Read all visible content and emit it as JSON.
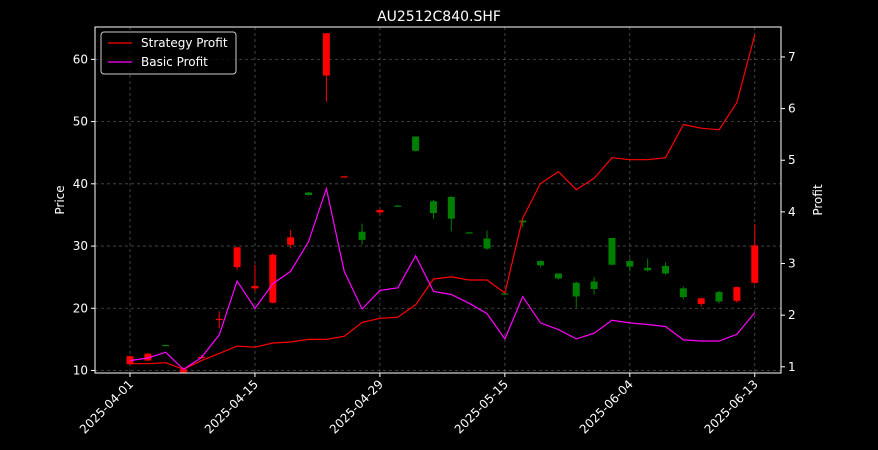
{
  "chart_data": {
    "type": "candlestick-with-lines",
    "title": "AU2512C840.SHF",
    "xlabel": "",
    "ylabel_left": "Price",
    "ylabel_right": "Profit",
    "ylim_left": [
      9.6,
      65.2
    ],
    "ylim_right": [
      0.88,
      7.58
    ],
    "left_ticks": [
      10,
      20,
      30,
      40,
      50,
      60
    ],
    "right_ticks": [
      1,
      2,
      3,
      4,
      5,
      6,
      7
    ],
    "x_ticks": [
      "2025-04-01",
      "2025-04-15",
      "2025-04-29",
      "2025-05-15",
      "2025-06-04",
      "2025-06-13"
    ],
    "x_tick_index": [
      0,
      7,
      14,
      21,
      28,
      35
    ],
    "grid": true,
    "legend_position": "top-left",
    "up_color": "#008000",
    "down_color": "#ff0000",
    "candles": [
      {
        "o": 12.3,
        "h": 12.4,
        "l": 10.9,
        "c": 11.0
      },
      {
        "o": 12.7,
        "h": 12.8,
        "l": 11.5,
        "c": 11.6
      },
      {
        "o": 14.0,
        "h": 14.1,
        "l": 13.9,
        "c": 14.1
      },
      {
        "o": 10.2,
        "h": 10.4,
        "l": 9.6,
        "c": 9.7
      },
      {
        "o": 12.2,
        "h": 12.5,
        "l": 11.9,
        "c": 12.0
      },
      {
        "o": 18.3,
        "h": 19.5,
        "l": 16.8,
        "c": 18.2
      },
      {
        "o": 29.8,
        "h": 29.9,
        "l": 26.2,
        "c": 26.6
      },
      {
        "o": 23.6,
        "h": 27.0,
        "l": 22.7,
        "c": 23.2
      },
      {
        "o": 28.6,
        "h": 28.8,
        "l": 20.8,
        "c": 20.9
      },
      {
        "o": 31.4,
        "h": 32.6,
        "l": 29.6,
        "c": 30.2
      },
      {
        "o": 38.2,
        "h": 38.7,
        "l": 38.1,
        "c": 38.6
      },
      {
        "o": 64.2,
        "h": 64.2,
        "l": 53.2,
        "c": 57.4
      },
      {
        "o": 41.2,
        "h": 41.3,
        "l": 41.0,
        "c": 41.1
      },
      {
        "o": 31.0,
        "h": 33.6,
        "l": 30.2,
        "c": 32.3
      },
      {
        "o": 35.8,
        "h": 36.0,
        "l": 35.1,
        "c": 35.4
      },
      {
        "o": 36.4,
        "h": 36.6,
        "l": 36.3,
        "c": 36.5
      },
      {
        "o": 45.3,
        "h": 47.6,
        "l": 45.2,
        "c": 47.6
      },
      {
        "o": 35.3,
        "h": 37.4,
        "l": 34.4,
        "c": 37.2
      },
      {
        "o": 34.4,
        "h": 38.0,
        "l": 32.4,
        "c": 37.9
      },
      {
        "o": 32.2,
        "h": 32.3,
        "l": 32.1,
        "c": 32.2
      },
      {
        "o": 29.6,
        "h": 32.5,
        "l": 29.4,
        "c": 31.2
      },
      {
        "o": 22.3,
        "h": 22.6,
        "l": 22.1,
        "c": 22.4
      },
      {
        "o": 33.8,
        "h": 34.2,
        "l": 33.0,
        "c": 34.1
      },
      {
        "o": 26.9,
        "h": 27.7,
        "l": 26.6,
        "c": 27.6
      },
      {
        "o": 24.8,
        "h": 25.6,
        "l": 24.6,
        "c": 25.6
      },
      {
        "o": 21.9,
        "h": 24.3,
        "l": 20.1,
        "c": 24.1
      },
      {
        "o": 23.1,
        "h": 25.0,
        "l": 22.2,
        "c": 24.3
      },
      {
        "o": 27.0,
        "h": 31.3,
        "l": 26.9,
        "c": 31.3
      },
      {
        "o": 26.7,
        "h": 28.0,
        "l": 26.0,
        "c": 27.6
      },
      {
        "o": 26.1,
        "h": 28.0,
        "l": 25.9,
        "c": 26.5
      },
      {
        "o": 25.6,
        "h": 27.4,
        "l": 25.4,
        "c": 26.8
      },
      {
        "o": 21.8,
        "h": 23.5,
        "l": 21.4,
        "c": 23.2
      },
      {
        "o": 21.6,
        "h": 21.7,
        "l": 20.3,
        "c": 20.7
      },
      {
        "o": 21.1,
        "h": 22.8,
        "l": 20.8,
        "c": 22.6
      },
      {
        "o": 23.4,
        "h": 23.5,
        "l": 20.9,
        "c": 21.2
      },
      {
        "o": 30.1,
        "h": 33.5,
        "l": 23.9,
        "c": 24.1
      }
    ],
    "series": [
      {
        "name": "Strategy Profit",
        "color": "#ff0000",
        "values": [
          1.06,
          1.06,
          1.08,
          0.95,
          1.12,
          1.26,
          1.4,
          1.38,
          1.46,
          1.48,
          1.53,
          1.53,
          1.59,
          1.86,
          1.94,
          1.96,
          2.2,
          2.7,
          2.74,
          2.68,
          2.68,
          2.43,
          3.88,
          4.55,
          4.78,
          4.43,
          4.65,
          5.05,
          5.01,
          5.01,
          5.05,
          5.69,
          5.62,
          5.59,
          6.12,
          7.43
        ]
      },
      {
        "name": "Basic Profit",
        "color": "#ff00ff",
        "values": [
          1.12,
          1.17,
          1.28,
          0.95,
          1.18,
          1.62,
          2.66,
          2.13,
          2.61,
          2.85,
          3.42,
          4.45,
          2.85,
          2.12,
          2.48,
          2.53,
          3.15,
          2.46,
          2.4,
          2.23,
          2.03,
          1.54,
          2.36,
          1.85,
          1.72,
          1.54,
          1.65,
          1.9,
          1.85,
          1.82,
          1.78,
          1.52,
          1.5,
          1.5,
          1.63,
          2.05
        ]
      }
    ]
  }
}
